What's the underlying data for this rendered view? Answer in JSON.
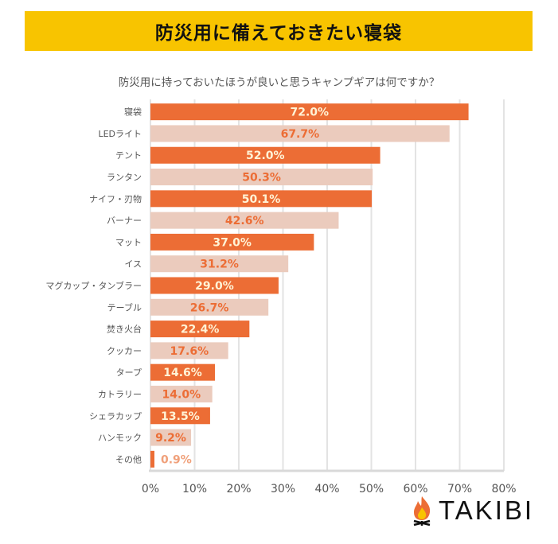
{
  "chart_data": {
    "type": "bar",
    "orientation": "horizontal",
    "title": "防災用に備えておきたい寝袋",
    "subtitle": "防災用に持っておいたほうが良いと思うキャンプギアは何ですか？",
    "categories": [
      "寝袋",
      "LEDライト",
      "テント",
      "ランタン",
      "ナイフ・刃物",
      "バーナー",
      "マット",
      "イス",
      "マグカップ・タンブラー",
      "テーブル",
      "焚き火台",
      "クッカー",
      "タープ",
      "カトラリー",
      "シェラカップ",
      "ハンモック",
      "その他"
    ],
    "values": [
      72.0,
      67.7,
      52.0,
      50.3,
      50.1,
      42.6,
      37.0,
      31.2,
      29.0,
      26.7,
      22.4,
      17.6,
      14.6,
      14.0,
      13.5,
      9.2,
      0.9
    ],
    "data_labels": [
      "72.0%",
      "67.7%",
      "52.0%",
      "50.3%",
      "50.1%",
      "42.6%",
      "37.0%",
      "31.2%",
      "29.0%",
      "26.7%",
      "22.4%",
      "17.6%",
      "14.6%",
      "14.0%",
      "13.5%",
      "9.2%",
      "0.9%"
    ],
    "xlim": [
      0,
      80
    ],
    "xticks": [
      "0%",
      "10%",
      "20%",
      "30%",
      "40%",
      "50%",
      "60%",
      "70%",
      "80%"
    ],
    "grid": "vertical",
    "colors": {
      "dark": "#ec6d35",
      "light": "#ebcbbd",
      "label_on_dark": "#fff3d6",
      "label_on_light": "#ec6d35"
    }
  },
  "logo": {
    "text": "TAKIBI"
  }
}
